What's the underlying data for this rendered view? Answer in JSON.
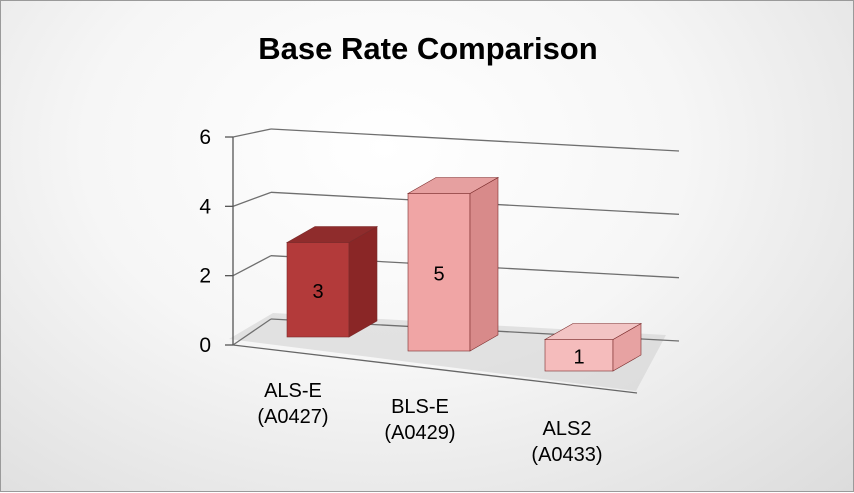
{
  "chart_data": {
    "type": "bar",
    "title": "Base Rate Comparison",
    "categories": [
      [
        "ALS-E",
        "(A0427)"
      ],
      [
        "BLS-E",
        "(A0429)"
      ],
      [
        "ALS2",
        "(A0433)"
      ]
    ],
    "values": [
      3,
      5,
      1
    ],
    "ylim": [
      0,
      6
    ],
    "yticks": [
      0,
      2,
      4,
      6
    ],
    "grid": true,
    "legend": "none",
    "colors": {
      "front": [
        "#b33a3a",
        "#f0a5a5",
        "#f5bcbc"
      ],
      "side": [
        "#8a2626",
        "#d88a8a",
        "#e7a2a2"
      ],
      "top": [
        "#8f2c2c",
        "#e6a0a0",
        "#f2c4c4"
      ]
    }
  }
}
